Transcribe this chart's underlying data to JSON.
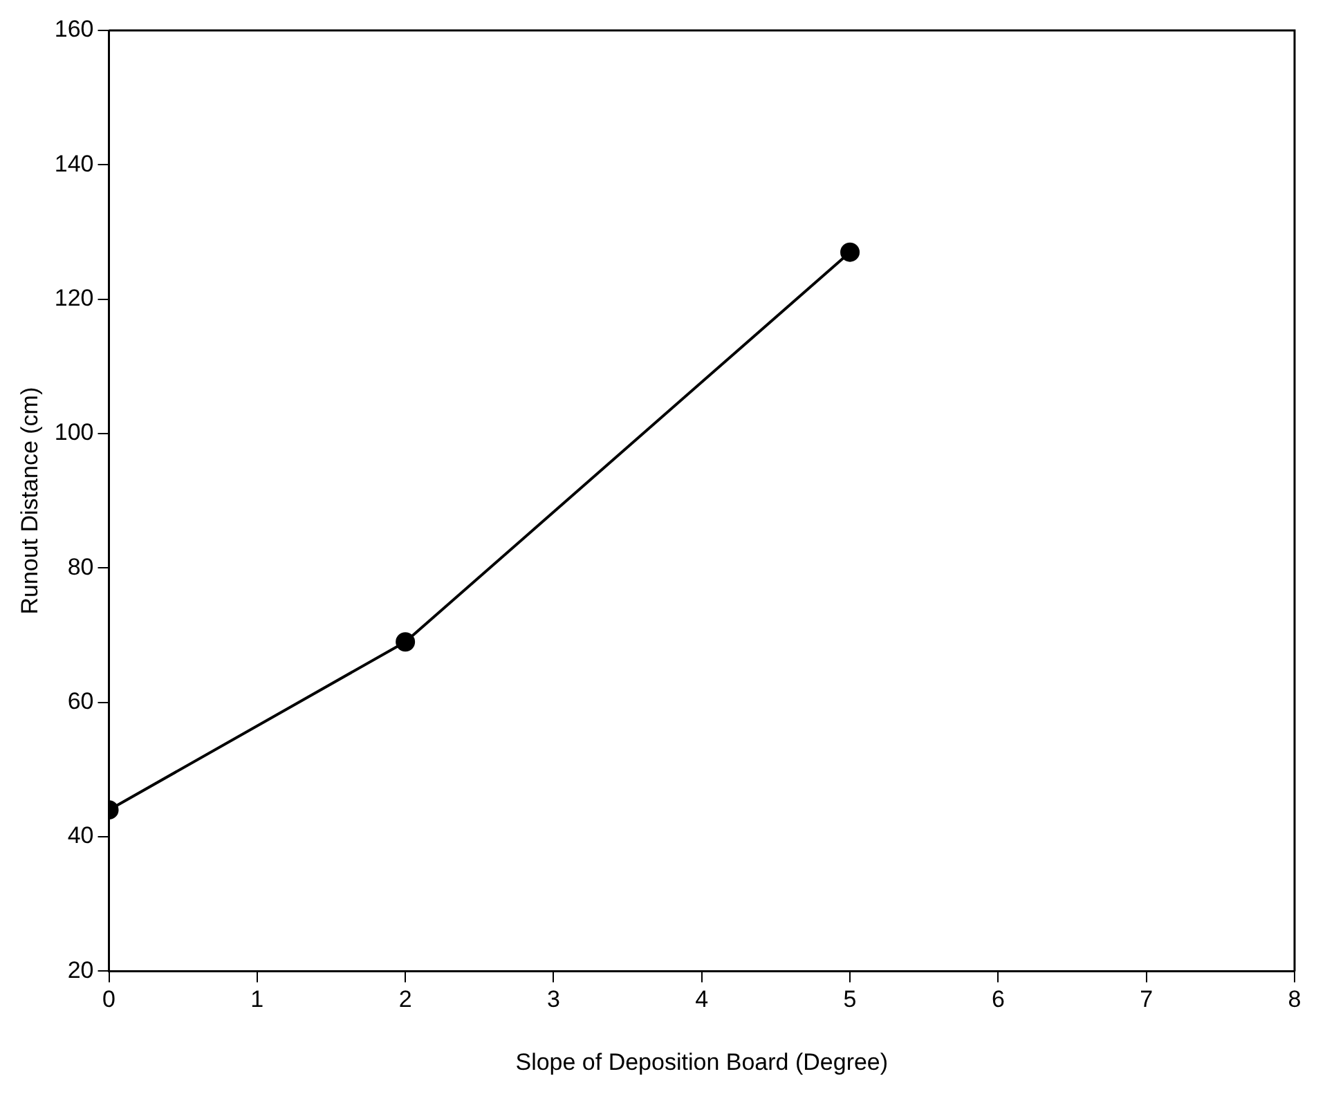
{
  "chart_data": {
    "type": "line",
    "xlabel": "Slope of Deposition Board (Degree)",
    "ylabel": "Runout Distance (cm)",
    "x": [
      0,
      2,
      5
    ],
    "series": [
      {
        "color": "#000000",
        "values": [
          44,
          69,
          127
        ]
      }
    ],
    "xlim": [
      0,
      8
    ],
    "xticks": [
      0,
      1,
      2,
      3,
      4,
      5,
      6,
      7,
      8
    ],
    "ylim": [
      20,
      160
    ],
    "yticks": [
      20,
      40,
      60,
      80,
      100,
      120,
      140,
      160
    ],
    "grid": false,
    "legend": false,
    "marker": "circle",
    "line_style": "solid"
  }
}
